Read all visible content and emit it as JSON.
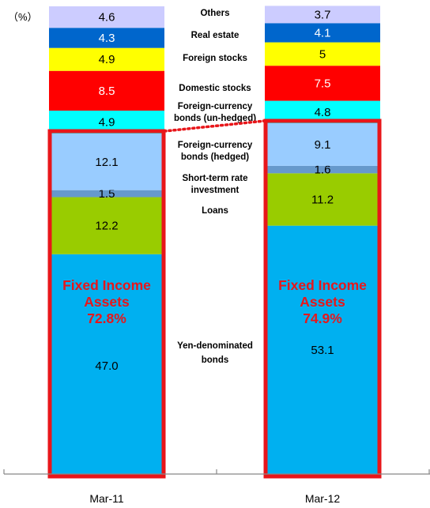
{
  "chart_data": {
    "type": "stacked-bar",
    "unit_label": "（%）",
    "categories": [
      "Mar-11",
      "Mar-12"
    ],
    "series": [
      {
        "name": "Yen-denominated bonds",
        "label_lines": [
          "Yen-denominated",
          "bonds"
        ],
        "color": "#00b0f0",
        "text_color": "#000000",
        "values": [
          47.0,
          53.1
        ],
        "value_labels": [
          "47.0",
          "53.1"
        ]
      },
      {
        "name": "Loans",
        "label_lines": [
          "Loans"
        ],
        "color": "#99cc00",
        "text_color": "#000000",
        "values": [
          12.2,
          11.2
        ],
        "value_labels": [
          "12.2",
          "11.2"
        ]
      },
      {
        "name": "Short-term rate investment",
        "label_lines": [
          "Short-term rate",
          "investment"
        ],
        "color": "#6699cc",
        "text_color": "#000000",
        "values": [
          1.5,
          1.6
        ],
        "value_labels": [
          "1.5",
          "1.6"
        ]
      },
      {
        "name": "Foreign-currency bonds (hedged)",
        "label_lines": [
          "Foreign-currency",
          "bonds (hedged)"
        ],
        "color": "#99ccff",
        "text_color": "#000000",
        "values": [
          12.1,
          9.1
        ],
        "value_labels": [
          "12.1",
          "9.1"
        ]
      },
      {
        "name": "Foreign-currency bonds (un-hedged)",
        "label_lines": [
          "Foreign-currency",
          "bonds (un-hedged)"
        ],
        "color": "#00ffff",
        "text_color": "#000000",
        "values": [
          4.9,
          4.8
        ],
        "value_labels": [
          "4.9",
          "4.8"
        ]
      },
      {
        "name": "Domestic stocks",
        "label_lines": [
          "Domestic stocks"
        ],
        "color": "#ff0000",
        "text_color": "#ffffff",
        "values": [
          8.5,
          7.5
        ],
        "value_labels": [
          "8.5",
          "7.5"
        ]
      },
      {
        "name": "Foreign stocks",
        "label_lines": [
          "Foreign stocks"
        ],
        "color": "#ffff00",
        "text_color": "#000000",
        "values": [
          4.9,
          5
        ],
        "value_labels": [
          "4.9",
          "5"
        ]
      },
      {
        "name": "Real estate",
        "label_lines": [
          "Real estate"
        ],
        "color": "#0066cc",
        "text_color": "#ffffff",
        "values": [
          4.3,
          4.1
        ],
        "value_labels": [
          "4.3",
          "4.1"
        ]
      },
      {
        "name": "Others",
        "label_lines": [
          "Others"
        ],
        "color": "#ccccff",
        "text_color": "#000000",
        "values": [
          4.6,
          3.7
        ],
        "value_labels": [
          "4.6",
          "3.7"
        ]
      }
    ],
    "fixed_income": {
      "label_lines": [
        "Fixed Income",
        "Assets"
      ],
      "values": [
        "72.8%",
        "74.9%"
      ],
      "box_color": "#e8161a"
    },
    "ylim": [
      0,
      100
    ],
    "legend_placement": "between bars",
    "grid": false
  }
}
